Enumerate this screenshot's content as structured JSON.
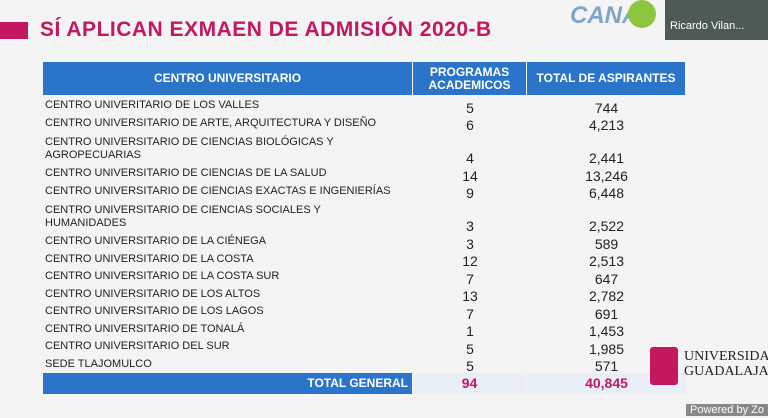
{
  "header": {
    "title": "SÍ APLICAN EXMAEN DE ADMISIÓN 2020-B",
    "channel_logo": "CANAL",
    "participant": "Ricardo Vilan..."
  },
  "table": {
    "columns": [
      "CENTRO UNIVERSITARIO",
      "PROGRAMAS ACADEMICOS",
      "TOTAL DE ASPIRANTES"
    ],
    "rows": [
      [
        "CENTRO UNIVERITARIO DE LOS VALLES",
        "5",
        "744"
      ],
      [
        "CENTRO UNIVERSITARIO DE ARTE, ARQUITECTURA Y DISEÑO",
        "6",
        "4,213"
      ],
      [
        "CENTRO UNIVERSITARIO DE CIENCIAS BIOLÓGICAS Y\nAGROPECUARIAS",
        "4",
        "2,441"
      ],
      [
        "CENTRO UNIVERSITARIO DE CIENCIAS DE LA SALUD",
        "14",
        "13,246"
      ],
      [
        "CENTRO UNIVERSITARIO DE CIENCIAS EXACTAS E INGENIERÍAS",
        "9",
        "6,448"
      ],
      [
        "CENTRO UNIVERSITARIO DE CIENCIAS SOCIALES Y\nHUMANIDADES",
        "3",
        "2,522"
      ],
      [
        "CENTRO UNIVERSITARIO DE LA CIÉNEGA",
        "3",
        "589"
      ],
      [
        "CENTRO UNIVERSITARIO DE LA COSTA",
        "12",
        "2,513"
      ],
      [
        "CENTRO UNIVERSITARIO DE LA COSTA SUR",
        "7",
        "647"
      ],
      [
        "CENTRO UNIVERSITARIO DE LOS ALTOS",
        "13",
        "2,782"
      ],
      [
        "CENTRO UNIVERSITARIO DE LOS LAGOS",
        "7",
        "691"
      ],
      [
        "CENTRO UNIVERSITARIO DE TONALÁ",
        "1",
        "1,453"
      ],
      [
        "CENTRO UNIVERSITARIO DEL SUR",
        "5",
        "1,985"
      ],
      [
        "SEDE TLAJOMULCO",
        "5",
        "571"
      ]
    ],
    "total": [
      "TOTAL GENERAL",
      "94",
      "40,845"
    ]
  },
  "footer": {
    "university": "UNIVERSIDAD\nGUADALAJA",
    "powered": "Powered by Zo"
  }
}
